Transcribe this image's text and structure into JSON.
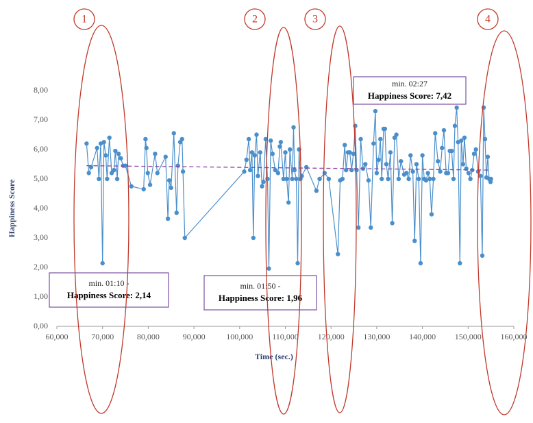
{
  "chart_data": {
    "type": "line",
    "x_label": "Time (sec.)",
    "y_label": "Happiness Score",
    "xlim": [
      60000,
      160000
    ],
    "ylim": [
      0,
      8
    ],
    "xticks": [
      {
        "value": 60000,
        "label": "60,000"
      },
      {
        "value": 70000,
        "label": "70,000"
      },
      {
        "value": 80000,
        "label": "80,000"
      },
      {
        "value": 90000,
        "label": "90,000"
      },
      {
        "value": 100000,
        "label": "100,000"
      },
      {
        "value": 110000,
        "label": "110,000"
      },
      {
        "value": 120000,
        "label": "120,000"
      },
      {
        "value": 130000,
        "label": "130,000"
      },
      {
        "value": 140000,
        "label": "140,000"
      },
      {
        "value": 150000,
        "label": "150,000"
      },
      {
        "value": 160000,
        "label": "160,000"
      }
    ],
    "yticks": [
      {
        "value": 0,
        "label": "0,00"
      },
      {
        "value": 1,
        "label": "1,00"
      },
      {
        "value": 2,
        "label": "2,00"
      },
      {
        "value": 3,
        "label": "3,00"
      },
      {
        "value": 4,
        "label": "4,00"
      },
      {
        "value": 5,
        "label": "5,00"
      },
      {
        "value": 6,
        "label": "6,00"
      },
      {
        "value": 7,
        "label": "7,00"
      },
      {
        "value": 8,
        "label": "8,00"
      }
    ],
    "grid": false,
    "x": [
      66500,
      67000,
      67500,
      68800,
      69200,
      69600,
      70000,
      70300,
      70700,
      71000,
      71500,
      72000,
      72500,
      72800,
      73200,
      73500,
      74000,
      74500,
      75000,
      76300,
      79000,
      79400,
      79600,
      79900,
      80400,
      81500,
      82000,
      83800,
      84300,
      84600,
      85000,
      85600,
      86200,
      86500,
      87000,
      87400,
      87600,
      88000,
      101000,
      101500,
      102000,
      102300,
      102700,
      103000,
      103300,
      103700,
      104000,
      104500,
      104900,
      105200,
      105700,
      106100,
      106400,
      106800,
      107200,
      107800,
      108400,
      108800,
      109000,
      109600,
      110000,
      110300,
      110700,
      111000,
      111500,
      111800,
      112000,
      112400,
      112700,
      113000,
      113300,
      113600,
      114600,
      116800,
      117500,
      118600,
      119500,
      121500,
      122000,
      122500,
      123000,
      123300,
      123700,
      124100,
      124500,
      124900,
      125300,
      125600,
      126000,
      126500,
      127000,
      127500,
      128200,
      128700,
      129300,
      129700,
      130000,
      130400,
      130800,
      131100,
      131500,
      131800,
      132100,
      132500,
      133000,
      133400,
      133900,
      134300,
      134800,
      135300,
      136000,
      136500,
      137000,
      137400,
      137900,
      138300,
      138700,
      139200,
      139600,
      140000,
      140400,
      140800,
      141200,
      141600,
      142000,
      142400,
      142800,
      143400,
      143900,
      144300,
      144700,
      145200,
      145600,
      146000,
      146400,
      146800,
      147100,
      147500,
      147800,
      148200,
      148500,
      148900,
      149200,
      149600,
      150100,
      150500,
      150900,
      151300,
      151700,
      152200,
      152700,
      153100,
      153400,
      153700,
      154000,
      154300,
      154600,
      154900,
      155000
    ],
    "series": [
      {
        "color": "#4a8fcb",
        "values": [
          6.2,
          5.2,
          5.4,
          6.05,
          5.0,
          6.2,
          2.14,
          6.25,
          5.8,
          5.0,
          6.4,
          5.2,
          5.3,
          5.95,
          5.0,
          5.85,
          5.7,
          5.45,
          5.45,
          4.75,
          4.65,
          6.35,
          6.05,
          5.2,
          4.8,
          5.85,
          5.2,
          5.75,
          3.65,
          4.95,
          4.7,
          6.55,
          3.85,
          5.45,
          6.25,
          6.35,
          5.25,
          3.0,
          5.25,
          5.65,
          6.35,
          5.3,
          5.9,
          3.0,
          5.8,
          6.5,
          5.1,
          5.9,
          4.75,
          4.9,
          6.35,
          5.0,
          1.96,
          6.3,
          5.85,
          5.3,
          5.2,
          6.1,
          6.25,
          5.0,
          5.9,
          5.0,
          4.2,
          6.0,
          5.0,
          6.75,
          5.3,
          5.0,
          2.14,
          6.0,
          5.0,
          5.1,
          5.4,
          4.6,
          5.0,
          5.2,
          5.0,
          2.45,
          4.95,
          5.0,
          6.15,
          5.3,
          5.9,
          5.9,
          5.3,
          5.85,
          6.8,
          5.3,
          3.35,
          6.35,
          5.35,
          5.5,
          4.95,
          3.35,
          6.2,
          7.3,
          5.2,
          5.65,
          6.35,
          5.0,
          6.7,
          6.7,
          5.5,
          5.0,
          5.9,
          3.5,
          6.4,
          6.5,
          5.0,
          5.6,
          5.15,
          5.2,
          5.0,
          5.8,
          5.25,
          2.9,
          5.5,
          5.0,
          2.14,
          5.8,
          5.0,
          4.95,
          5.2,
          5.0,
          3.8,
          5.0,
          6.55,
          5.6,
          5.25,
          6.05,
          6.65,
          5.2,
          5.2,
          5.95,
          5.95,
          5.0,
          6.8,
          7.42,
          6.25,
          2.14,
          6.3,
          5.5,
          6.4,
          5.35,
          5.2,
          5.0,
          5.3,
          5.85,
          6.0,
          5.25,
          5.1,
          2.4,
          7.42,
          6.35,
          5.05,
          5.75,
          5.0,
          4.9,
          5.0
        ]
      }
    ],
    "trend": {
      "color": "#8e3fa0",
      "x": [
        66500,
        155000
      ],
      "values": [
        5.45,
        5.3
      ]
    },
    "annotations": [
      {
        "lines": [
          "min. 01:10 -",
          "Happiness Score: 2,14"
        ]
      },
      {
        "lines": [
          "min. 01:50 -",
          "Happiness Score: 1,96"
        ]
      },
      {
        "lines": [
          "min. 02:27",
          "Happiness Score: 7,42"
        ]
      }
    ],
    "markers": [
      "1",
      "2",
      "3",
      "4"
    ]
  }
}
